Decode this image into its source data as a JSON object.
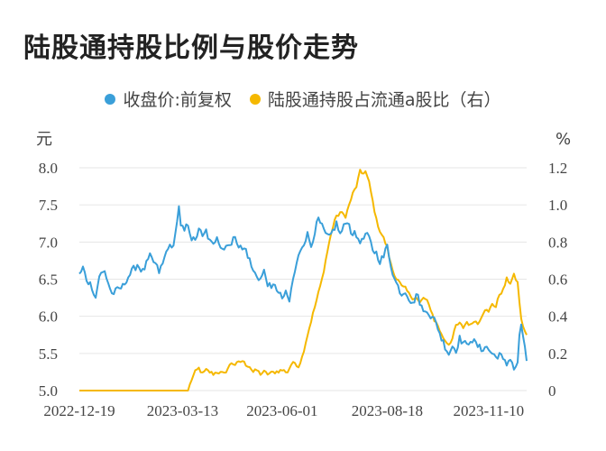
{
  "title": "陆股通持股比例与股价走势",
  "colors": {
    "price": "#3a9fd9",
    "ratio": "#f5b800",
    "grid": "#e6e6e6",
    "text": "#444444"
  },
  "chart_data": {
    "type": "line",
    "title": "陆股通持股比例与股价走势",
    "y_left_label": "元",
    "y_right_label": "%",
    "y_left_range": [
      5.0,
      8.0
    ],
    "y_right_range": [
      0,
      1.2
    ],
    "y_left_ticks": [
      "8.0",
      "7.5",
      "7.0",
      "6.5",
      "6.0",
      "5.5",
      "5.0"
    ],
    "y_right_ticks": [
      "1.2",
      "1.0",
      "0.8",
      "0.6",
      "0.4",
      "0.2",
      "0"
    ],
    "x_tick_labels": [
      "2022-12-19",
      "2023-03-13",
      "2023-06-01",
      "2023-08-18",
      "2023-11-10"
    ],
    "x_tick_index": [
      0,
      57,
      112,
      170,
      226
    ],
    "n_points": 248,
    "series": [
      {
        "name": "收盘价:前复权",
        "axis": "left",
        "knots": [
          [
            0,
            6.55
          ],
          [
            2,
            6.65
          ],
          [
            4,
            6.5
          ],
          [
            7,
            6.4
          ],
          [
            9,
            6.25
          ],
          [
            11,
            6.55
          ],
          [
            14,
            6.6
          ],
          [
            16,
            6.45
          ],
          [
            18,
            6.3
          ],
          [
            21,
            6.35
          ],
          [
            24,
            6.4
          ],
          [
            26,
            6.5
          ],
          [
            29,
            6.6
          ],
          [
            32,
            6.7
          ],
          [
            35,
            6.6
          ],
          [
            37,
            6.7
          ],
          [
            39,
            6.8
          ],
          [
            42,
            6.7
          ],
          [
            44,
            6.6
          ],
          [
            46,
            6.7
          ],
          [
            49,
            6.95
          ],
          [
            51,
            6.9
          ],
          [
            53,
            7.1
          ],
          [
            54,
            7.3
          ],
          [
            55,
            7.45
          ],
          [
            56,
            7.2
          ],
          [
            58,
            7.15
          ],
          [
            60,
            7.25
          ],
          [
            62,
            7.05
          ],
          [
            64,
            7.0
          ],
          [
            66,
            7.2
          ],
          [
            68,
            7.05
          ],
          [
            70,
            7.15
          ],
          [
            72,
            7.0
          ],
          [
            74,
            6.95
          ],
          [
            76,
            7.1
          ],
          [
            78,
            6.95
          ],
          [
            80,
            6.9
          ],
          [
            82,
            7.0
          ],
          [
            84,
            6.95
          ],
          [
            86,
            7.1
          ],
          [
            88,
            6.95
          ],
          [
            90,
            6.9
          ],
          [
            92,
            6.9
          ],
          [
            94,
            6.75
          ],
          [
            96,
            6.6
          ],
          [
            98,
            6.55
          ],
          [
            100,
            6.5
          ],
          [
            102,
            6.6
          ],
          [
            104,
            6.45
          ],
          [
            106,
            6.35
          ],
          [
            108,
            6.45
          ],
          [
            110,
            6.3
          ],
          [
            112,
            6.25
          ],
          [
            114,
            6.3
          ],
          [
            116,
            6.2
          ],
          [
            118,
            6.5
          ],
          [
            120,
            6.7
          ],
          [
            122,
            6.9
          ],
          [
            124,
            7.0
          ],
          [
            126,
            7.1
          ],
          [
            128,
            6.95
          ],
          [
            130,
            7.15
          ],
          [
            132,
            7.3
          ],
          [
            134,
            7.2
          ],
          [
            136,
            7.1
          ],
          [
            138,
            7.05
          ],
          [
            140,
            7.15
          ],
          [
            142,
            7.25
          ],
          [
            144,
            7.1
          ],
          [
            146,
            7.2
          ],
          [
            148,
            7.3
          ],
          [
            150,
            7.15
          ],
          [
            152,
            7.1
          ],
          [
            154,
            7.05
          ],
          [
            156,
            7.0
          ],
          [
            158,
            7.1
          ],
          [
            160,
            7.05
          ],
          [
            162,
            6.9
          ],
          [
            164,
            6.85
          ],
          [
            166,
            6.75
          ],
          [
            168,
            6.8
          ],
          [
            170,
            6.95
          ],
          [
            172,
            6.7
          ],
          [
            174,
            6.5
          ],
          [
            176,
            6.4
          ],
          [
            178,
            6.3
          ],
          [
            180,
            6.35
          ],
          [
            182,
            6.25
          ],
          [
            184,
            6.15
          ],
          [
            186,
            6.3
          ],
          [
            188,
            6.2
          ],
          [
            190,
            6.05
          ],
          [
            192,
            6.1
          ],
          [
            194,
            6.0
          ],
          [
            196,
            5.95
          ],
          [
            198,
            5.85
          ],
          [
            200,
            5.7
          ],
          [
            202,
            5.6
          ],
          [
            204,
            5.5
          ],
          [
            206,
            5.6
          ],
          [
            208,
            5.55
          ],
          [
            210,
            5.7
          ],
          [
            212,
            5.65
          ],
          [
            214,
            5.6
          ],
          [
            216,
            5.7
          ],
          [
            218,
            5.65
          ],
          [
            220,
            5.6
          ],
          [
            222,
            5.55
          ],
          [
            224,
            5.6
          ],
          [
            226,
            5.55
          ],
          [
            228,
            5.5
          ],
          [
            230,
            5.45
          ],
          [
            232,
            5.5
          ],
          [
            234,
            5.4
          ],
          [
            236,
            5.35
          ],
          [
            238,
            5.45
          ],
          [
            240,
            5.3
          ],
          [
            242,
            5.35
          ],
          [
            243,
            5.75
          ],
          [
            244,
            5.9
          ],
          [
            245,
            5.7
          ],
          [
            246,
            5.55
          ],
          [
            247,
            5.4
          ]
        ]
      },
      {
        "name": "陆股通持股占流通a股比（右）",
        "axis": "right",
        "knots": [
          [
            0,
            0.0
          ],
          [
            60,
            0.0
          ],
          [
            62,
            0.06
          ],
          [
            64,
            0.1
          ],
          [
            66,
            0.12
          ],
          [
            68,
            0.09
          ],
          [
            70,
            0.11
          ],
          [
            72,
            0.1
          ],
          [
            74,
            0.09
          ],
          [
            76,
            0.1
          ],
          [
            80,
            0.09
          ],
          [
            82,
            0.12
          ],
          [
            84,
            0.15
          ],
          [
            86,
            0.14
          ],
          [
            88,
            0.15
          ],
          [
            90,
            0.16
          ],
          [
            92,
            0.14
          ],
          [
            94,
            0.13
          ],
          [
            96,
            0.1
          ],
          [
            98,
            0.11
          ],
          [
            100,
            0.09
          ],
          [
            102,
            0.1
          ],
          [
            104,
            0.09
          ],
          [
            108,
            0.1
          ],
          [
            112,
            0.11
          ],
          [
            115,
            0.1
          ],
          [
            117,
            0.14
          ],
          [
            119,
            0.15
          ],
          [
            121,
            0.13
          ],
          [
            123,
            0.18
          ],
          [
            126,
            0.3
          ],
          [
            130,
            0.45
          ],
          [
            134,
            0.6
          ],
          [
            138,
            0.8
          ],
          [
            141,
            0.92
          ],
          [
            144,
            0.96
          ],
          [
            147,
            0.94
          ],
          [
            149,
            1.0
          ],
          [
            151,
            1.06
          ],
          [
            153,
            1.1
          ],
          [
            155,
            1.18
          ],
          [
            156,
            1.17
          ],
          [
            158,
            1.18
          ],
          [
            160,
            1.12
          ],
          [
            162,
            1.02
          ],
          [
            164,
            0.92
          ],
          [
            166,
            0.86
          ],
          [
            168,
            0.82
          ],
          [
            170,
            0.77
          ],
          [
            172,
            0.68
          ],
          [
            174,
            0.62
          ],
          [
            176,
            0.6
          ],
          [
            178,
            0.56
          ],
          [
            180,
            0.55
          ],
          [
            182,
            0.52
          ],
          [
            184,
            0.5
          ],
          [
            186,
            0.5
          ],
          [
            188,
            0.47
          ],
          [
            190,
            0.5
          ],
          [
            192,
            0.48
          ],
          [
            194,
            0.44
          ],
          [
            196,
            0.38
          ],
          [
            198,
            0.35
          ],
          [
            200,
            0.3
          ],
          [
            202,
            0.27
          ],
          [
            204,
            0.25
          ],
          [
            206,
            0.28
          ],
          [
            208,
            0.35
          ],
          [
            210,
            0.36
          ],
          [
            212,
            0.34
          ],
          [
            214,
            0.37
          ],
          [
            216,
            0.35
          ],
          [
            218,
            0.38
          ],
          [
            220,
            0.36
          ],
          [
            222,
            0.4
          ],
          [
            224,
            0.44
          ],
          [
            226,
            0.42
          ],
          [
            228,
            0.47
          ],
          [
            230,
            0.45
          ],
          [
            232,
            0.52
          ],
          [
            234,
            0.54
          ],
          [
            236,
            0.6
          ],
          [
            238,
            0.58
          ],
          [
            240,
            0.62
          ],
          [
            242,
            0.58
          ],
          [
            244,
            0.38
          ],
          [
            246,
            0.32
          ],
          [
            247,
            0.3
          ]
        ]
      }
    ]
  }
}
